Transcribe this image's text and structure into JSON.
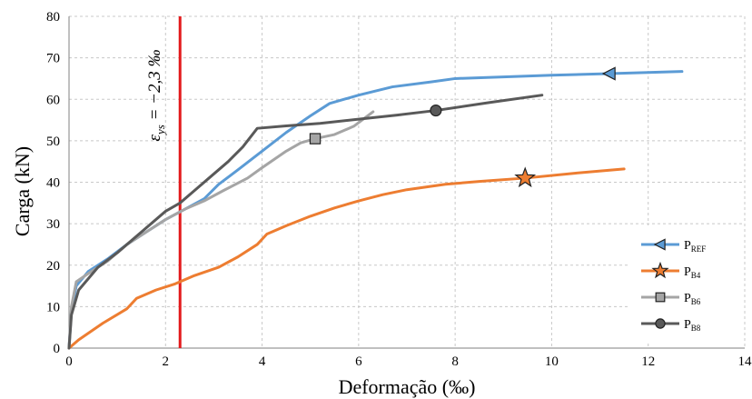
{
  "chart_data": {
    "type": "line",
    "xlabel": "Deformação (‰)",
    "ylabel": "Carga (kN)",
    "xlim": [
      0,
      14
    ],
    "ylim": [
      0,
      80
    ],
    "xticks": [
      0,
      2,
      4,
      6,
      8,
      10,
      12,
      14
    ],
    "yticks": [
      0,
      10,
      20,
      30,
      40,
      50,
      60,
      70,
      80
    ],
    "grid": true,
    "legend_position": "bottom-right",
    "annotation": {
      "text": "εys = −2,3 ‰",
      "main": "ε",
      "sub": "ys",
      "rest": " = −2,3 ‰",
      "x": 2.3,
      "color": "#e31a1c"
    },
    "series": [
      {
        "name": "PREF",
        "name_main": "P",
        "name_sub": "REF",
        "color": "#5b9bd5",
        "marker": "triangle-left",
        "marker_at": [
          11.2,
          66.2
        ],
        "x": [
          0,
          0.05,
          0.15,
          0.4,
          0.8,
          1.2,
          1.6,
          2.0,
          2.4,
          2.8,
          3.1,
          3.5,
          4.0,
          4.5,
          5.0,
          5.4,
          6.0,
          6.7,
          7.5,
          8.0,
          9.0,
          10.0,
          11.2,
          12.7
        ],
        "y": [
          0,
          9,
          15,
          18.5,
          21.5,
          25,
          28,
          31,
          33.5,
          36,
          39.5,
          43,
          47.5,
          52,
          56,
          59,
          61,
          63,
          64.2,
          65,
          65.4,
          65.8,
          66.2,
          66.7
        ]
      },
      {
        "name": "PB4",
        "name_main": "P",
        "name_sub": "B4",
        "color": "#ed7d31",
        "marker": "star",
        "marker_at": [
          9.45,
          41
        ],
        "x": [
          0,
          0.2,
          0.7,
          1.2,
          1.4,
          1.8,
          2.2,
          2.6,
          3.1,
          3.5,
          3.9,
          4.1,
          4.5,
          5.0,
          5.5,
          6.0,
          6.5,
          7.0,
          7.8,
          8.5,
          9.45,
          10.5,
          11.5
        ],
        "y": [
          0,
          2,
          6,
          9.5,
          12,
          14,
          15.5,
          17.5,
          19.5,
          22,
          25,
          27.5,
          29.5,
          31.8,
          33.8,
          35.5,
          37,
          38.2,
          39.5,
          40.2,
          41,
          42.2,
          43.2
        ]
      },
      {
        "name": "PB6",
        "name_main": "P",
        "name_sub": "B6",
        "color": "#a5a5a5",
        "marker": "square",
        "marker_at": [
          5.1,
          50.5
        ],
        "x": [
          0,
          0.05,
          0.15,
          0.4,
          0.8,
          1.2,
          1.6,
          2.0,
          2.4,
          2.8,
          3.2,
          3.7,
          4.0,
          4.5,
          4.8,
          5.1,
          5.5,
          5.9,
          6.3
        ],
        "y": [
          0,
          10,
          16,
          18,
          21,
          25,
          28,
          31,
          33.5,
          35.5,
          38,
          41,
          43.5,
          47.5,
          49.5,
          50.5,
          51.5,
          53.5,
          57
        ]
      },
      {
        "name": "PB8",
        "name_main": "P",
        "name_sub": "B8",
        "color": "#595959",
        "marker": "circle",
        "marker_at": [
          7.6,
          57.3
        ],
        "x": [
          0,
          0.05,
          0.2,
          0.6,
          1.0,
          1.5,
          2.0,
          2.3,
          2.6,
          2.9,
          3.3,
          3.6,
          3.9,
          4.5,
          5.2,
          6.0,
          6.8,
          7.6,
          8.7,
          9.8
        ],
        "y": [
          0,
          8,
          14,
          19.5,
          23,
          28,
          33,
          35,
          38,
          41,
          45,
          48.5,
          53,
          53.6,
          54.2,
          55.2,
          56.2,
          57.3,
          59.2,
          61
        ]
      }
    ]
  }
}
